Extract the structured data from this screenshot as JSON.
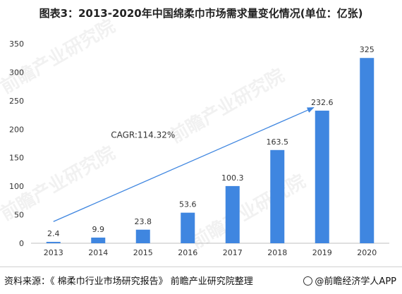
{
  "title": "图表3：2013-2020年中国绵柔巾市场需求量变化情况(单位：亿张)",
  "watermark": "前瞻产业研究院",
  "source": "资料来源：《 棉柔巾行业市场研究报告》 前瞻产业研究院整理",
  "brand": "@前瞻经济学人APP",
  "colors": {
    "bar": "#3f86e0",
    "arrow": "#3f86e0",
    "axis": "#bfbfbf",
    "text": "#333333"
  },
  "chart_data": {
    "type": "bar",
    "title": "图表3：2013-2020年中国绵柔巾市场需求量变化情况(单位：亿张)",
    "categories": [
      "2013",
      "2014",
      "2015",
      "2016",
      "2017",
      "2018",
      "2019",
      "2020"
    ],
    "values": [
      2.4,
      9.9,
      23.8,
      53.6,
      100.3,
      163.5,
      232.6,
      325
    ],
    "data_labels": [
      "2.4",
      "9.9",
      "23.8",
      "53.6",
      "100.3",
      "163.5",
      "232.6",
      "325"
    ],
    "yticks": [
      "0",
      "50",
      "100",
      "150",
      "200",
      "250",
      "300",
      "350"
    ],
    "ylim": [
      0,
      350
    ],
    "grid": false,
    "annotation": {
      "text": "CAGR:114.32%",
      "arrow_from": {
        "x": "2013",
        "y": 38
      },
      "arrow_to": {
        "x": "2019",
        "y": 238
      },
      "text_anchor": {
        "x": "2015",
        "y": 185
      }
    }
  }
}
